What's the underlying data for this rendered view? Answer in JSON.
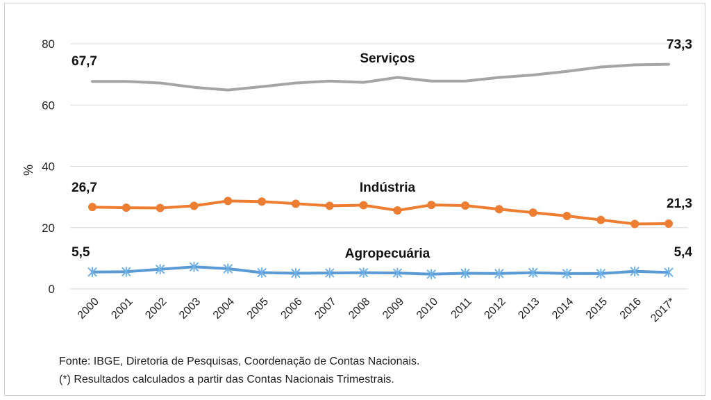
{
  "chart_data": {
    "type": "line",
    "title": "",
    "xlabel": "",
    "ylabel": "%",
    "ylim": [
      0,
      80
    ],
    "yticks": [
      0,
      20,
      40,
      60,
      80
    ],
    "grid": true,
    "legend": "none",
    "categories": [
      "2000",
      "2001",
      "2002",
      "2003",
      "2004",
      "2005",
      "2006",
      "2007",
      "2008",
      "2009",
      "2010",
      "2011",
      "2012",
      "2013",
      "2014",
      "2015",
      "2016",
      "2017*"
    ],
    "series": [
      {
        "name": "Serviços",
        "color": "#a5a5a5",
        "marker": "none",
        "values": [
          67.7,
          67.7,
          67.2,
          65.8,
          64.9,
          66.0,
          67.2,
          67.8,
          67.4,
          69.0,
          67.8,
          67.8,
          69.0,
          69.8,
          71.0,
          72.4,
          73.1,
          73.3
        ],
        "start_label": "67,7",
        "end_label": "73,3"
      },
      {
        "name": "Indústria",
        "color": "#ed7d31",
        "marker": "circle",
        "values": [
          26.7,
          26.5,
          26.4,
          27.1,
          28.7,
          28.5,
          27.8,
          27.1,
          27.3,
          25.6,
          27.4,
          27.2,
          26.0,
          24.9,
          23.8,
          22.5,
          21.2,
          21.3
        ],
        "start_label": "26,7",
        "end_label": "21,3"
      },
      {
        "name": "Agropecuária",
        "color": "#5b9bd5",
        "marker": "star",
        "values": [
          5.5,
          5.6,
          6.4,
          7.2,
          6.6,
          5.3,
          5.1,
          5.2,
          5.3,
          5.2,
          4.8,
          5.1,
          5.0,
          5.3,
          5.0,
          5.0,
          5.7,
          5.4
        ],
        "start_label": "5,5",
        "end_label": "5,4"
      }
    ]
  },
  "notes": {
    "source": "Fonte: IBGE, Diretoria de Pesquisas, Coordenação de Contas Nacionais.",
    "footnote": "(*) Resultados calculados a partir das Contas Nacionais Trimestrais."
  }
}
